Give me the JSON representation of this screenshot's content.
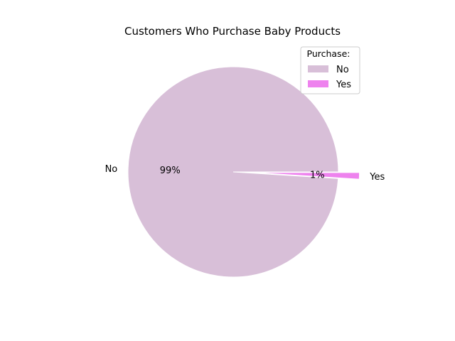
{
  "chart_data": {
    "type": "pie",
    "title": "Customers Who Purchase Baby Products",
    "categories": [
      "No",
      "Yes"
    ],
    "values": [
      99,
      1
    ],
    "percent_labels": [
      "99%",
      "1%"
    ],
    "colors": [
      "#d8bfd8",
      "#ee82ee"
    ],
    "explode": [
      0,
      0.2
    ],
    "start_angle_deg": 0,
    "legend": {
      "title": "Purchase:",
      "placement": "top-right",
      "entries": [
        "No",
        "Yes"
      ]
    }
  }
}
